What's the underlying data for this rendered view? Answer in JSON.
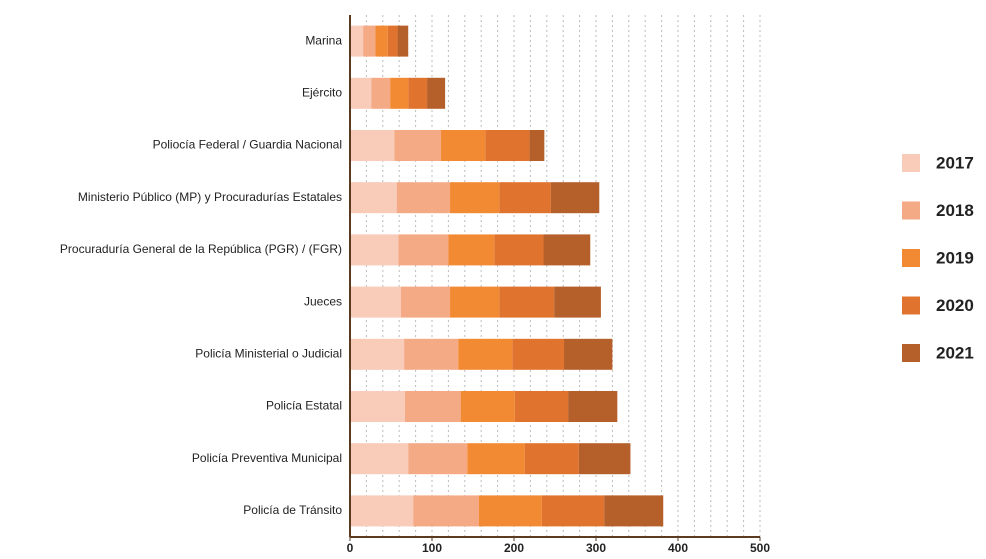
{
  "chart_data": {
    "type": "stacked_bar_horizontal",
    "categories": [
      "Marina",
      "Ejército",
      "Poliocía Federal / Guardia Nacional",
      "Ministerio Público (MP) y Procuradurías Estatales",
      "Procuraduría General de la República (PGR) / (FGR)",
      "Jueces",
      "Policía Ministerial o Judicial",
      "Policía Estatal",
      "Policía Preventiva Municipal",
      "Policía de Tránsito"
    ],
    "series": [
      {
        "name": "2017",
        "color": "#f9cbb9",
        "values": [
          16,
          26,
          54,
          57,
          59,
          62,
          66,
          67,
          71,
          77
        ]
      },
      {
        "name": "2018",
        "color": "#f5aa86",
        "values": [
          15,
          23,
          57,
          65,
          61,
          60,
          66,
          68,
          72,
          80
        ]
      },
      {
        "name": "2019",
        "color": "#f28a34",
        "values": [
          15,
          22,
          54,
          60,
          56,
          60,
          66,
          66,
          70,
          77
        ]
      },
      {
        "name": "2020",
        "color": "#e0742f",
        "values": [
          12,
          23,
          54,
          63,
          60,
          67,
          63,
          65,
          66,
          76
        ]
      },
      {
        "name": "2021",
        "color": "#b5602a",
        "values": [
          13,
          22,
          18,
          59,
          57,
          57,
          59,
          60,
          63,
          72
        ]
      }
    ],
    "xlim": [
      0,
      500
    ],
    "xticks": [
      0,
      100,
      200,
      300,
      400,
      500
    ],
    "grid": true,
    "legend": "right"
  }
}
